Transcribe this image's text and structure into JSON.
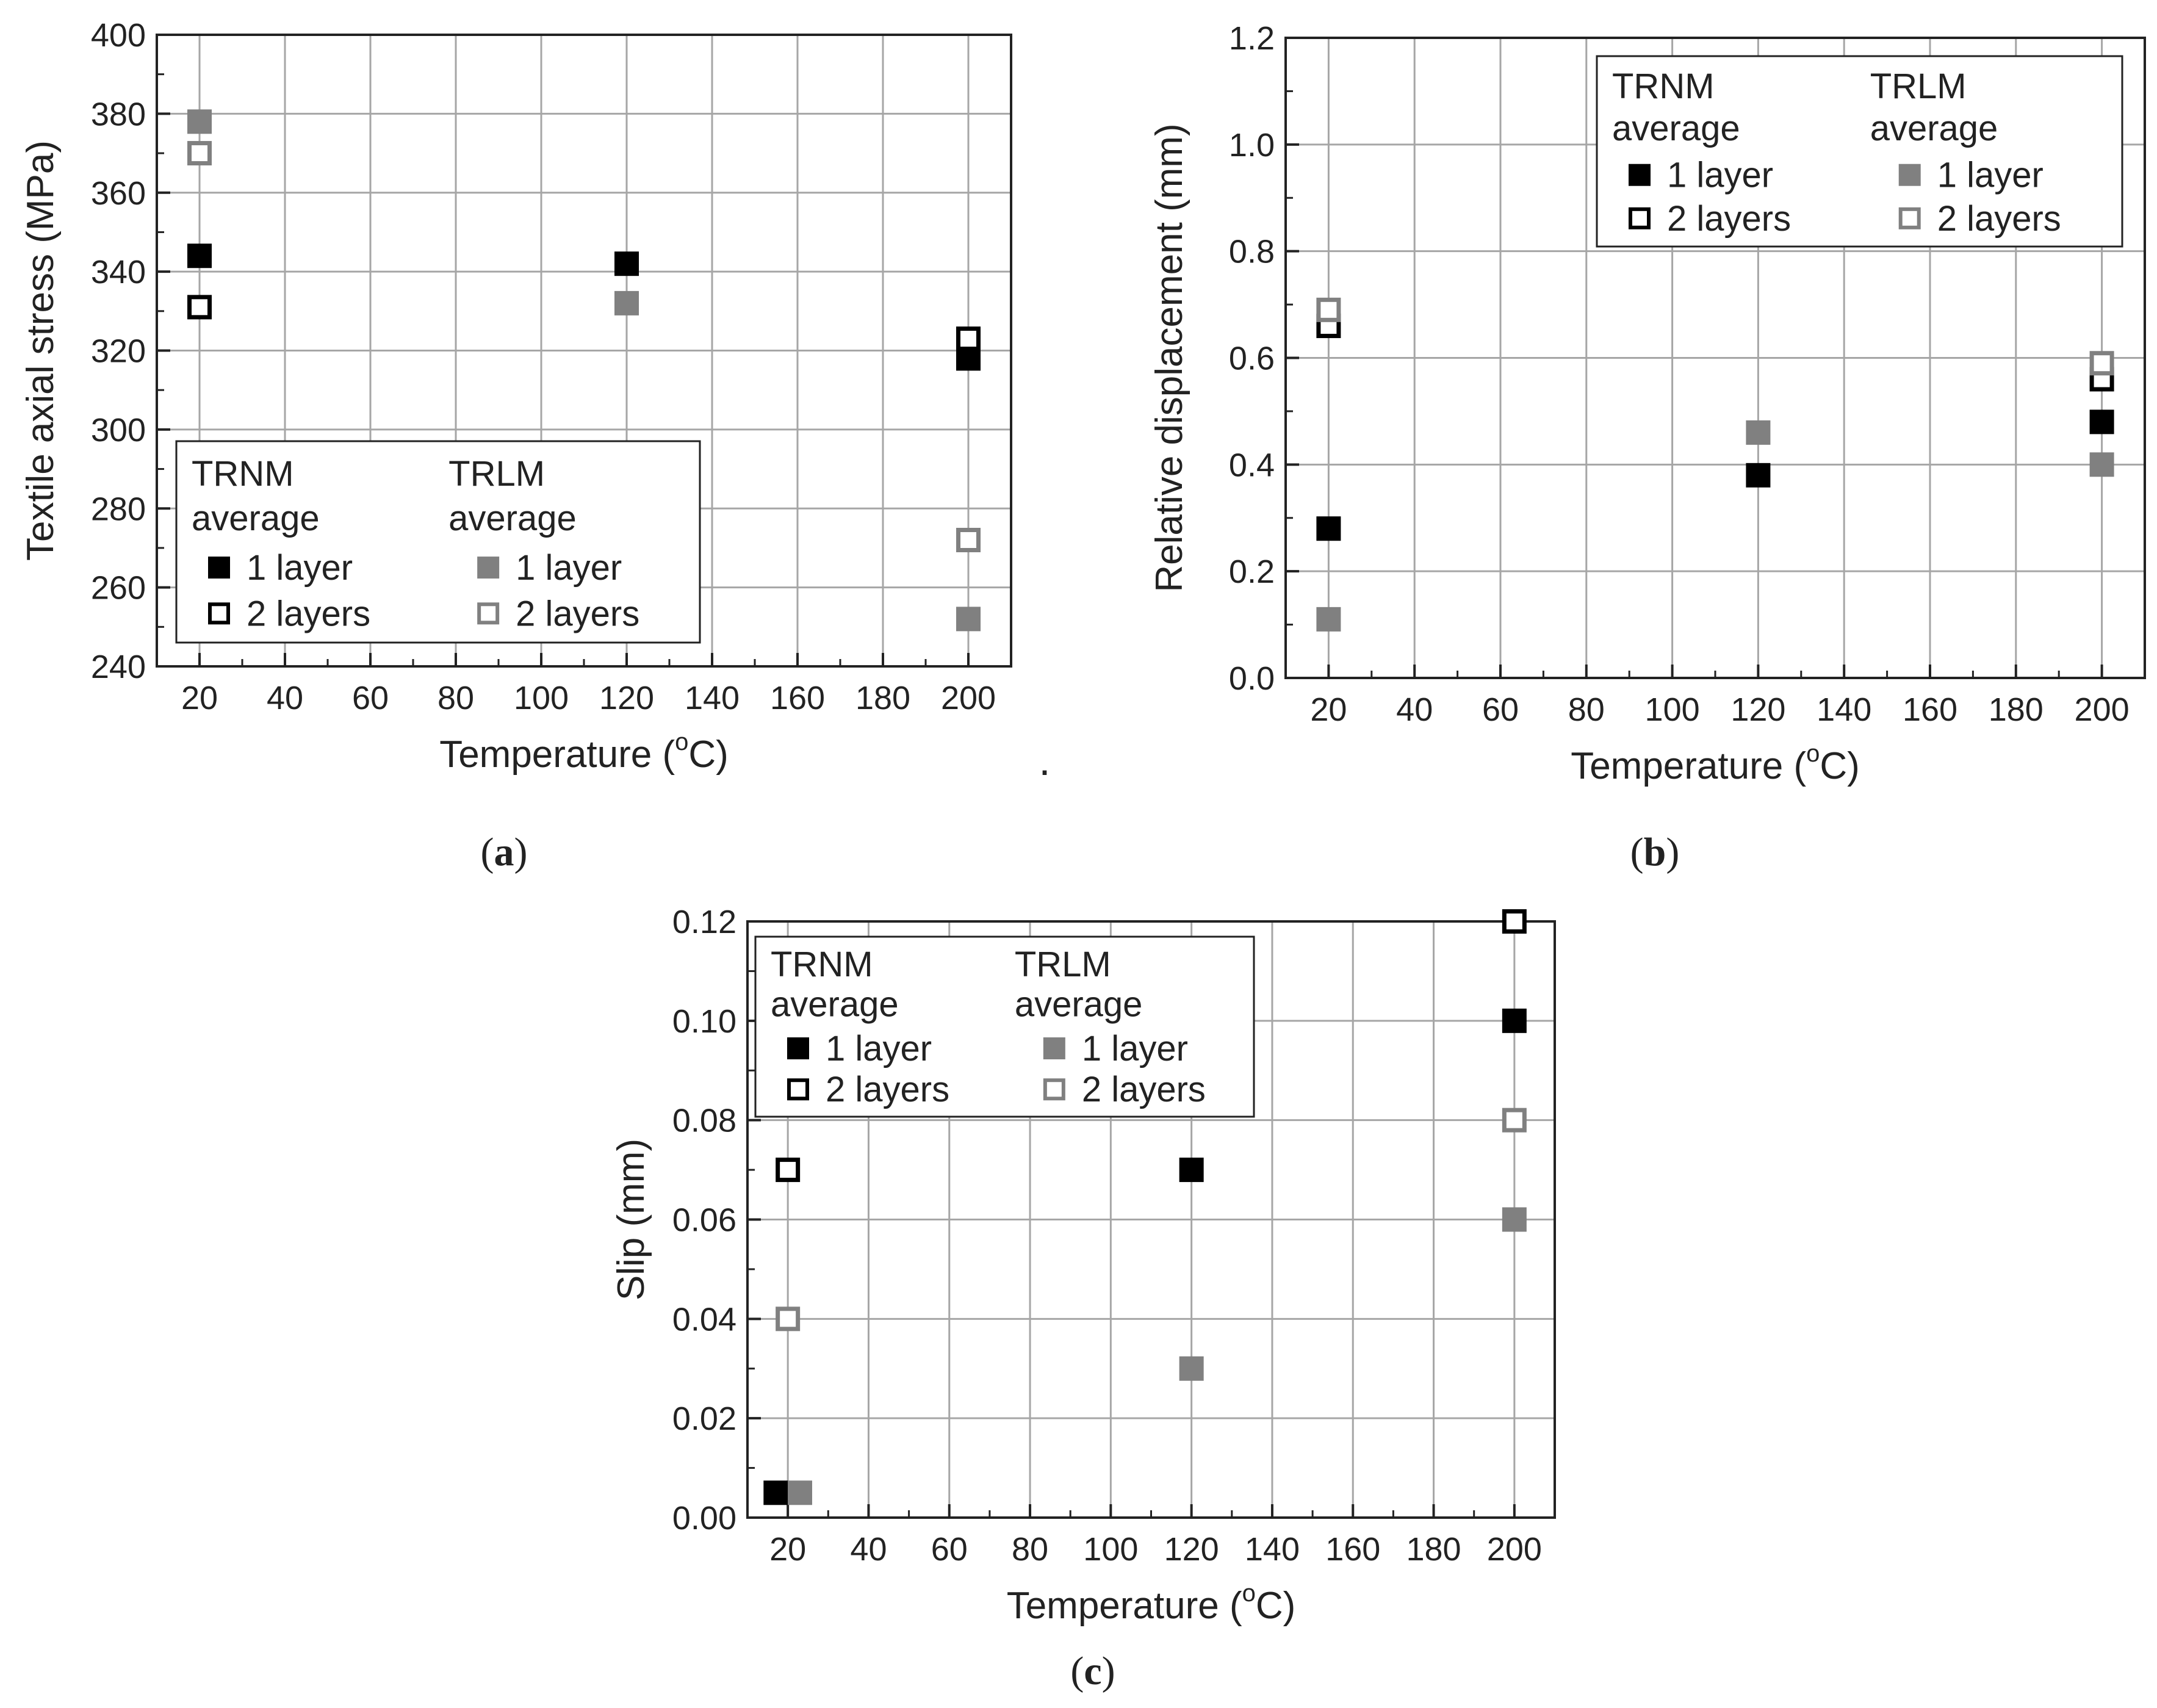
{
  "separator_mark": ".",
  "chart_data": [
    {
      "id": "a",
      "type": "scatter",
      "caption_letter": "a",
      "xlabel": "Temperature (",
      "xlabel_sup": "o",
      "xlabel_unit": "C)",
      "ylabel": "Textile axial stress (MPa)",
      "xlim": [
        10,
        210
      ],
      "ylim": [
        240,
        400
      ],
      "xticks": [
        20,
        40,
        60,
        80,
        100,
        120,
        140,
        160,
        180,
        200
      ],
      "yticks": [
        240,
        260,
        280,
        300,
        320,
        340,
        360,
        380,
        400
      ],
      "grid": true,
      "legend": {
        "placement": "bottom-left",
        "group1": [
          "TRNM",
          "average"
        ],
        "group2": [
          "TRLM",
          "average"
        ],
        "entries": [
          "1 layer",
          "2 layers",
          "1 layer",
          "2 layers"
        ]
      },
      "series": [
        {
          "name": "TRNM 1 layer",
          "color": "#000000",
          "filled": true,
          "points": [
            [
              20,
              344
            ],
            [
              120,
              342
            ],
            [
              200,
              318
            ]
          ]
        },
        {
          "name": "TRNM 2 layers",
          "color": "#000000",
          "filled": false,
          "points": [
            [
              20,
              331
            ],
            [
              200,
              323
            ]
          ]
        },
        {
          "name": "TRLM 1 layer",
          "color": "#808080",
          "filled": true,
          "points": [
            [
              20,
              378
            ],
            [
              120,
              332
            ],
            [
              200,
              252
            ]
          ]
        },
        {
          "name": "TRLM 2 layers",
          "color": "#808080",
          "filled": false,
          "points": [
            [
              20,
              370
            ],
            [
              200,
              272
            ]
          ]
        }
      ]
    },
    {
      "id": "b",
      "type": "scatter",
      "caption_letter": "b",
      "xlabel": "Temperature (",
      "xlabel_sup": "o",
      "xlabel_unit": "C)",
      "ylabel": "Relative displacement (mm)",
      "xlim": [
        10,
        210
      ],
      "ylim": [
        0,
        1.2
      ],
      "xticks": [
        20,
        40,
        60,
        80,
        100,
        120,
        140,
        160,
        180,
        200
      ],
      "yticks": [
        "0.0",
        "0.2",
        "0.4",
        "0.6",
        "0.8",
        "1.0",
        "1.2"
      ],
      "grid": true,
      "legend": {
        "placement": "top-right",
        "group1": [
          "TRNM",
          "average"
        ],
        "group2": [
          "TRLM",
          "average"
        ],
        "entries": [
          "1 layer",
          "2 layers",
          "1 layer",
          "2 layers"
        ]
      },
      "series": [
        {
          "name": "TRNM 1 layer",
          "color": "#000000",
          "filled": true,
          "points": [
            [
              20,
              0.28
            ],
            [
              120,
              0.38
            ],
            [
              200,
              0.48
            ]
          ]
        },
        {
          "name": "TRNM 2 layers",
          "color": "#000000",
          "filled": false,
          "points": [
            [
              20,
              0.66
            ],
            [
              200,
              0.56
            ]
          ]
        },
        {
          "name": "TRLM 1 layer",
          "color": "#808080",
          "filled": true,
          "points": [
            [
              20,
              0.11
            ],
            [
              120,
              0.46
            ],
            [
              200,
              0.4
            ]
          ]
        },
        {
          "name": "TRLM 2 layers",
          "color": "#808080",
          "filled": false,
          "points": [
            [
              20,
              0.69
            ],
            [
              200,
              0.59
            ]
          ]
        }
      ]
    },
    {
      "id": "c",
      "type": "scatter",
      "caption_letter": "c",
      "xlabel": "Temperature (",
      "xlabel_sup": "o",
      "xlabel_unit": "C)",
      "ylabel": "Slip (mm)",
      "xlim": [
        10,
        210
      ],
      "ylim": [
        0,
        0.12
      ],
      "xticks": [
        20,
        40,
        60,
        80,
        100,
        120,
        140,
        160,
        180,
        200
      ],
      "yticks": [
        "0.00",
        "0.02",
        "0.04",
        "0.06",
        "0.08",
        "0.10",
        "0.12"
      ],
      "grid": true,
      "legend": {
        "placement": "top-left",
        "group1": [
          "TRNM",
          "average"
        ],
        "group2": [
          "TRLM",
          "average"
        ],
        "entries": [
          "1 layer",
          "2 layers",
          "1 layer",
          "2 layers"
        ]
      },
      "series": [
        {
          "name": "TRNM 1 layer",
          "color": "#000000",
          "filled": true,
          "points": [
            [
              17,
              0.005
            ],
            [
              120,
              0.07
            ],
            [
              200,
              0.1
            ]
          ]
        },
        {
          "name": "TRNM 2 layers",
          "color": "#000000",
          "filled": false,
          "points": [
            [
              20,
              0.07
            ],
            [
              200,
              0.12
            ]
          ]
        },
        {
          "name": "TRLM 1 layer",
          "color": "#808080",
          "filled": true,
          "points": [
            [
              23,
              0.005
            ],
            [
              120,
              0.03
            ],
            [
              200,
              0.06
            ]
          ]
        },
        {
          "name": "TRLM 2 layers",
          "color": "#808080",
          "filled": false,
          "points": [
            [
              20,
              0.04
            ],
            [
              200,
              0.08
            ]
          ]
        }
      ]
    }
  ]
}
